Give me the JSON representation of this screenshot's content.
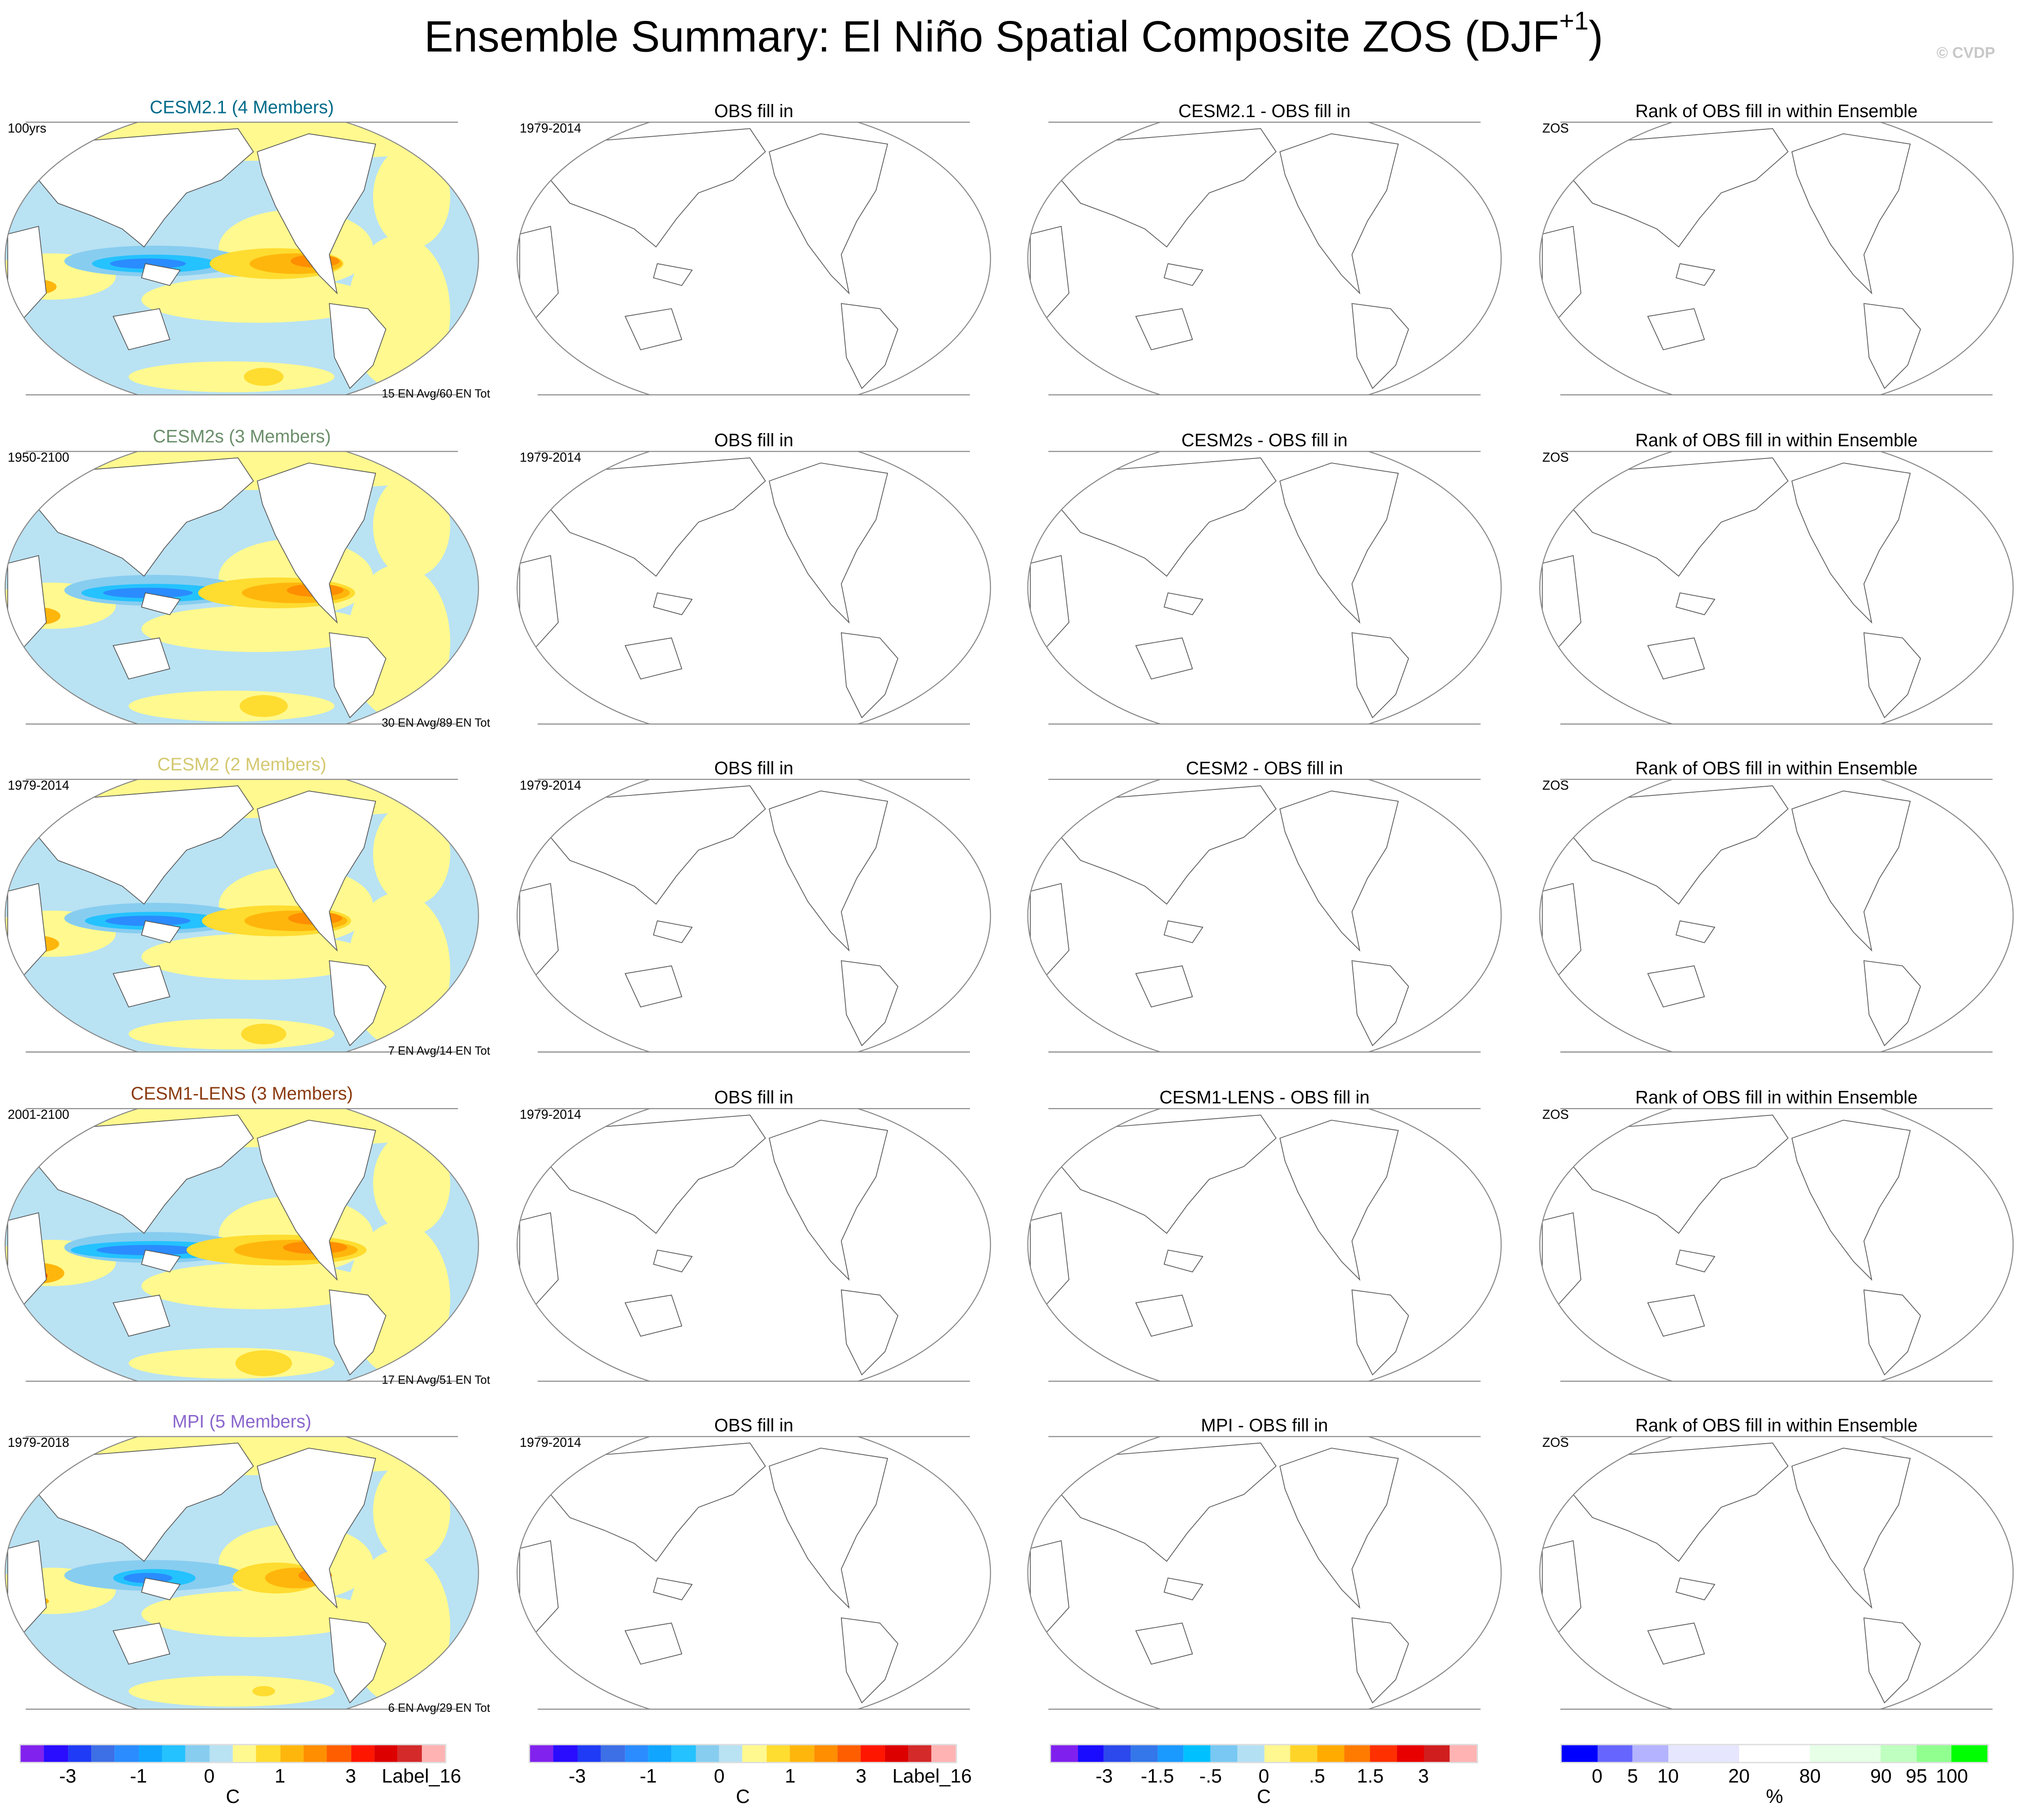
{
  "title": {
    "main": "Ensemble Summary: El Niño Spatial Composite ZOS (DJF",
    "sup": "+1",
    "close": ")"
  },
  "watermark": "© CVDP",
  "rows": [
    {
      "model": "CESM2.1 (4 Members)",
      "color": "#006b8a",
      "period": "100yrs",
      "note": "15 EN Avg/60 EN Tot",
      "diff": "CESM2.1 - OBS fill in",
      "strength": 0.7
    },
    {
      "model": "CESM2s (3 Members)",
      "color": "#6b8f6b",
      "period": "1950-2100",
      "note": "30 EN Avg/89 EN Tot",
      "diff": "CESM2s - OBS fill in",
      "strength": 0.85
    },
    {
      "model": "CESM2 (2 Members)",
      "color": "#d4c870",
      "period": "1979-2014",
      "note": "7 EN Avg/14 EN Tot",
      "diff": "CESM2 - OBS fill in",
      "strength": 0.8
    },
    {
      "model": "CESM1-LENS (3 Members)",
      "color": "#8b3a0f",
      "period": "2001-2100",
      "note": "17 EN Avg/51 EN Tot",
      "diff": "CESM1-LENS - OBS fill in",
      "strength": 1.0
    },
    {
      "model": "MPI (5 Members)",
      "color": "#8a66cc",
      "period": "1979-2018",
      "note": "6 EN Avg/29 EN Tot",
      "diff": "MPI - OBS fill in",
      "strength": 0.4
    }
  ],
  "obs": {
    "title": "OBS fill in",
    "period": "1979-2014"
  },
  "rank": {
    "title": "Rank of OBS fill in within Ensemble",
    "label": "ZOS"
  },
  "colorbars": [
    {
      "unit": "C",
      "colors": [
        "#8122ee",
        "#2a0cff",
        "#1f3bf5",
        "#3d6fe6",
        "#2a8cff",
        "#10a6ff",
        "#24c2ff",
        "#87cdf0",
        "#b9e2f3",
        "#fff98f",
        "#ffdc30",
        "#ffb60c",
        "#ff8e00",
        "#ff5e00",
        "#ff1600",
        "#dd0000",
        "#d42a2a",
        "#ffb3b3"
      ],
      "labels": [
        {
          "t": "-3",
          "at": 2
        },
        {
          "t": "-1",
          "at": 5
        },
        {
          "t": "0",
          "at": 8
        },
        {
          "t": "1",
          "at": 11
        },
        {
          "t": "3",
          "at": 14
        },
        {
          "t": "Label_16",
          "at": 17
        }
      ]
    },
    {
      "unit": "C",
      "colors": [
        "#8122ee",
        "#2a0cff",
        "#1f3bf5",
        "#3d6fe6",
        "#2a8cff",
        "#10a6ff",
        "#24c2ff",
        "#87cdf0",
        "#b9e2f3",
        "#fff98f",
        "#ffdc30",
        "#ffb60c",
        "#ff8e00",
        "#ff5e00",
        "#ff1600",
        "#dd0000",
        "#d42a2a",
        "#ffb3b3"
      ],
      "labels": [
        {
          "t": "-3",
          "at": 2
        },
        {
          "t": "-1",
          "at": 5
        },
        {
          "t": "0",
          "at": 8
        },
        {
          "t": "1",
          "at": 11
        },
        {
          "t": "3",
          "at": 14
        },
        {
          "t": "Label_16",
          "at": 17
        }
      ]
    },
    {
      "unit": "C",
      "colors": [
        "#8020ee",
        "#1a0cff",
        "#2b49ec",
        "#3377ea",
        "#1a99ff",
        "#00c0ff",
        "#78c8f3",
        "#b4e0f3",
        "#fff78f",
        "#ffd428",
        "#ffab00",
        "#ff7b00",
        "#ff3000",
        "#e80000",
        "#d01e1e",
        "#ffb3b3"
      ],
      "labels": [
        {
          "t": "-3",
          "at": 2
        },
        {
          "t": "-1.5",
          "at": 4
        },
        {
          "t": "-.5",
          "at": 6
        },
        {
          "t": "0",
          "at": 8
        },
        {
          "t": ".5",
          "at": 10
        },
        {
          "t": "1.5",
          "at": 12
        },
        {
          "t": "3",
          "at": 14
        }
      ]
    },
    {
      "unit": "%",
      "colors": [
        "#0000ff",
        "#6666ff",
        "#b3b3ff",
        "#e6e6ff",
        "#ffffff",
        "#e6ffe6",
        "#bfffbf",
        "#90ff90",
        "#00ff00"
      ],
      "weights": [
        1,
        1,
        1,
        2,
        2,
        2,
        1,
        1,
        1
      ],
      "labels": [
        {
          "t": "0",
          "at": 1
        },
        {
          "t": "5",
          "at": 2
        },
        {
          "t": "10",
          "at": 3
        },
        {
          "t": "20",
          "at": 5
        },
        {
          "t": "80",
          "at": 7
        },
        {
          "t": "90",
          "at": 9
        },
        {
          "t": "95",
          "at": 10
        },
        {
          "t": "100",
          "at": 11
        }
      ]
    }
  ]
}
